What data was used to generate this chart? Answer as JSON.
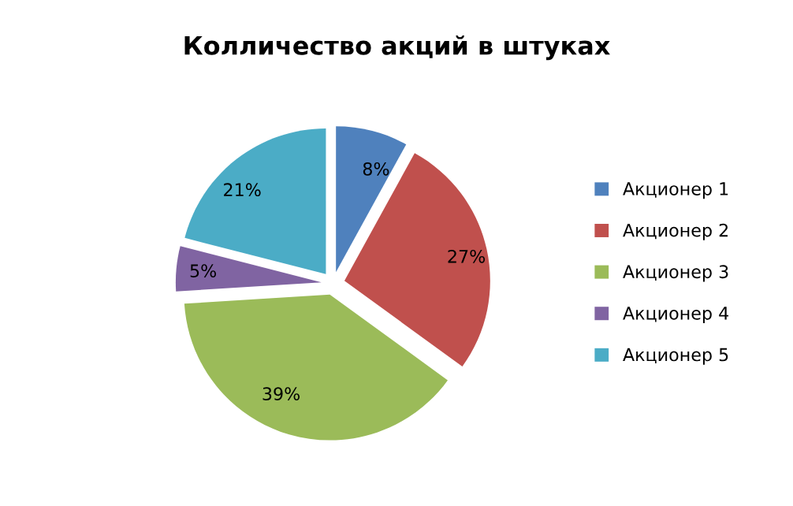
{
  "chart_data": {
    "type": "pie",
    "title": "Колличество акций в штуках",
    "categories": [
      "Акционер 1",
      "Акционер 2",
      "Акционер 3",
      "Акционер 4",
      "Акционер 5"
    ],
    "values": [
      8,
      27,
      39,
      5,
      21
    ],
    "colors": [
      "#4f81bd",
      "#c0504d",
      "#9bbb59",
      "#8064a2",
      "#4bacc6"
    ],
    "value_labels": [
      "8%",
      "27%",
      "39%",
      "5%",
      "21%"
    ],
    "legend": "right"
  }
}
